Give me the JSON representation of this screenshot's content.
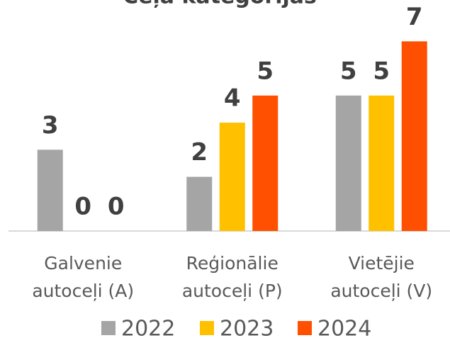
{
  "chart_data": {
    "type": "bar",
    "title": "Ceļa kategorijas",
    "categories": [
      "Galvenie autoceļi (A)",
      "Reģionālie autoceļi (P)",
      "Vietējie autoceļi (V)"
    ],
    "series": [
      {
        "name": "2022",
        "color": "#a5a5a5",
        "values": [
          3,
          2,
          5
        ]
      },
      {
        "name": "2023",
        "color": "#ffc000",
        "values": [
          0,
          4,
          5
        ]
      },
      {
        "name": "2024",
        "color": "#fe5000",
        "values": [
          0,
          5,
          7
        ]
      }
    ],
    "ylim": [
      0,
      8.5
    ]
  }
}
